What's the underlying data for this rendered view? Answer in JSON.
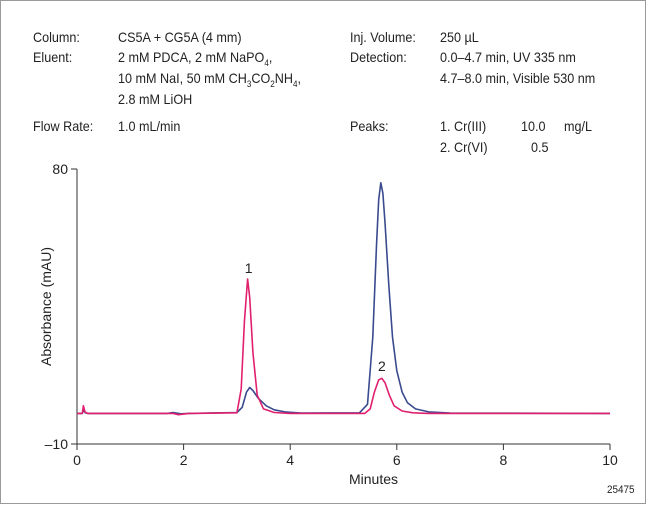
{
  "conditions": {
    "column_label": "Column:",
    "column_value": "CS5A + CG5A (4 mm)",
    "eluent_label": "Eluent:",
    "eluent_line1": "2 mM PDCA, 2 mM NaPO",
    "eluent_line1_sub": "4",
    "eluent_line1_end": ",",
    "eluent_line2_a": "10 mM NaI, 50 mM CH",
    "eluent_line2_sub1": "3",
    "eluent_line2_b": "CO",
    "eluent_line2_sub2": "2",
    "eluent_line2_c": "NH",
    "eluent_line2_sub3": "4",
    "eluent_line2_end": ",",
    "eluent_line3": "2.8 mM LiOH",
    "flow_label": "Flow Rate:",
    "flow_value": "1.0 mL/min",
    "inj_label": "Inj. Volume:",
    "inj_value": "250 µL",
    "detection_label": "Detection:",
    "detection_line1": "0.0–4.7 min, UV 335 nm",
    "detection_line2": "4.7–8.0 min, Visible 530 nm",
    "peaks_label": "Peaks:",
    "peak1_name": "1. Cr(III)",
    "peak1_conc": "10.0",
    "peak1_unit": "mg/L",
    "peak2_name": "2. Cr(VI)",
    "peak2_conc": "0.5"
  },
  "figure_id": "25475",
  "colors": {
    "uv_trace": "#3a4a8e",
    "vis_trace": "#e0206e",
    "axis": "#333333"
  },
  "chart_data": {
    "type": "line",
    "xlabel": "Minutes",
    "ylabel": "Absorbance (mAU)",
    "xlim": [
      0,
      10
    ],
    "ylim": [
      -10,
      80
    ],
    "x_ticks": [
      "0",
      "2",
      "4",
      "6",
      "8",
      "10"
    ],
    "y_ticks": [
      "80",
      "–10"
    ],
    "grid": false,
    "peak_labels": [
      {
        "text": "1",
        "x": 3.22,
        "y": 44
      },
      {
        "text": "2",
        "x": 5.72,
        "y": 12
      }
    ],
    "series": [
      {
        "color": "#3a4a8e",
        "points": [
          [
            0,
            0
          ],
          [
            0.1,
            0
          ],
          [
            0.12,
            1
          ],
          [
            0.16,
            0.2
          ],
          [
            0.2,
            0
          ],
          [
            1.7,
            0
          ],
          [
            1.8,
            0.3
          ],
          [
            1.95,
            -0.1
          ],
          [
            2.1,
            0
          ],
          [
            3.0,
            0.3
          ],
          [
            3.1,
            2
          ],
          [
            3.18,
            7
          ],
          [
            3.24,
            8.5
          ],
          [
            3.3,
            7.5
          ],
          [
            3.4,
            5
          ],
          [
            3.55,
            2.5
          ],
          [
            3.7,
            1.2
          ],
          [
            3.9,
            0.5
          ],
          [
            4.2,
            0.1
          ],
          [
            5.3,
            0.2
          ],
          [
            5.45,
            3
          ],
          [
            5.55,
            25
          ],
          [
            5.62,
            55
          ],
          [
            5.66,
            70
          ],
          [
            5.7,
            75.5
          ],
          [
            5.74,
            72
          ],
          [
            5.78,
            62
          ],
          [
            5.85,
            42
          ],
          [
            5.92,
            25
          ],
          [
            6.0,
            14
          ],
          [
            6.1,
            7
          ],
          [
            6.2,
            3.5
          ],
          [
            6.35,
            1.5
          ],
          [
            6.6,
            0.5
          ],
          [
            7.0,
            0.1
          ],
          [
            10,
            0
          ]
        ]
      },
      {
        "color": "#e0206e",
        "points": [
          [
            0,
            0
          ],
          [
            0.1,
            0
          ],
          [
            0.12,
            2.5
          ],
          [
            0.15,
            0.5
          ],
          [
            0.2,
            0
          ],
          [
            1.8,
            0
          ],
          [
            1.9,
            -0.4
          ],
          [
            2.1,
            0
          ],
          [
            3.0,
            0.2
          ],
          [
            3.08,
            8
          ],
          [
            3.14,
            30
          ],
          [
            3.2,
            44
          ],
          [
            3.24,
            38
          ],
          [
            3.3,
            20
          ],
          [
            3.38,
            6
          ],
          [
            3.5,
            1.5
          ],
          [
            3.7,
            0.3
          ],
          [
            4.0,
            0
          ],
          [
            5.4,
            0
          ],
          [
            5.5,
            1.5
          ],
          [
            5.58,
            7
          ],
          [
            5.66,
            11
          ],
          [
            5.72,
            11.5
          ],
          [
            5.78,
            10
          ],
          [
            5.86,
            6
          ],
          [
            5.95,
            2.5
          ],
          [
            6.1,
            0.8
          ],
          [
            6.3,
            0.2
          ],
          [
            6.6,
            0
          ],
          [
            10,
            0
          ]
        ]
      }
    ]
  }
}
